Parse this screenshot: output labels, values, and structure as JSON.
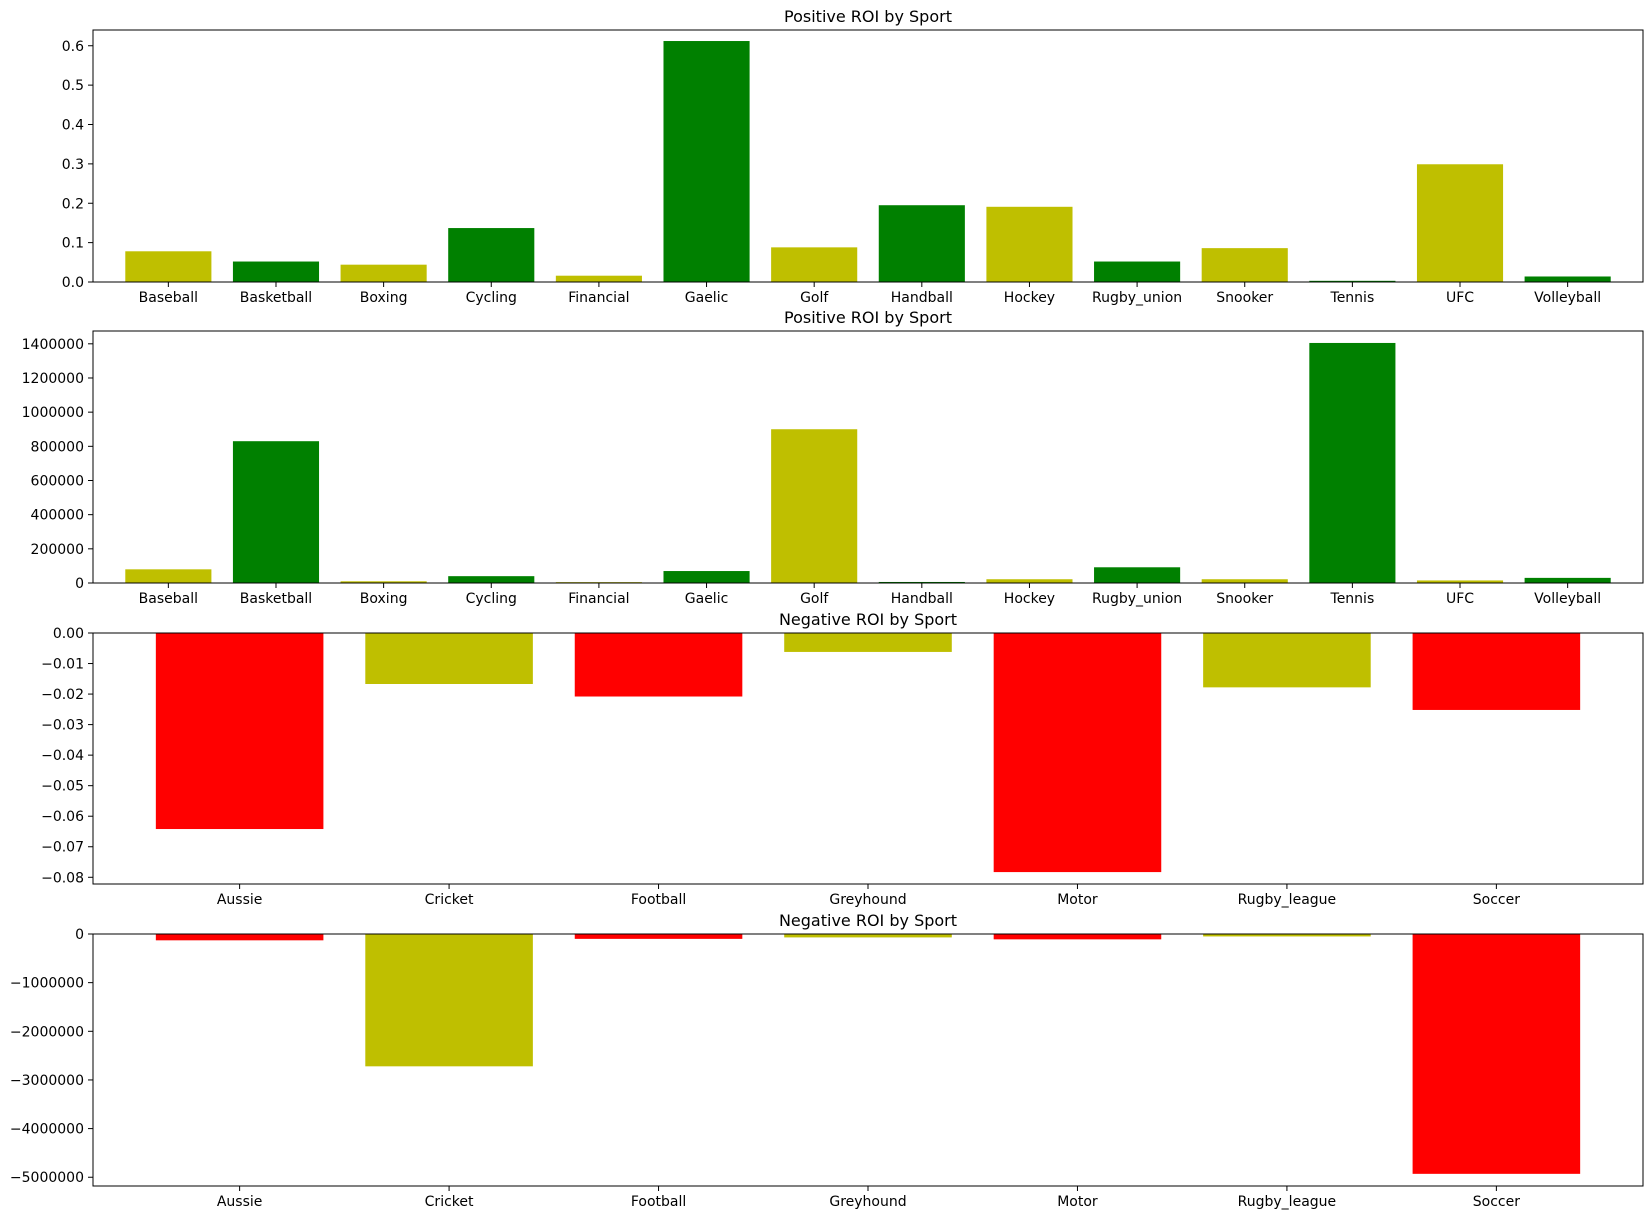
{
  "colors": {
    "green": "#008000",
    "yellow": "#bfbf00",
    "red": "#ff0000",
    "axis": "#000000",
    "background": "#ffffff"
  },
  "chart_data": [
    {
      "type": "bar",
      "title": "Positive ROI by Sport",
      "xlabel": "",
      "ylabel": "",
      "categories": [
        "Baseball",
        "Basketball",
        "Boxing",
        "Cycling",
        "Financial",
        "Gaelic",
        "Golf",
        "Handball",
        "Hockey",
        "Rugby_union",
        "Snooker",
        "Tennis",
        "UFC",
        "Volleyball"
      ],
      "values": [
        0.078,
        0.052,
        0.044,
        0.137,
        0.016,
        0.612,
        0.088,
        0.195,
        0.191,
        0.052,
        0.086,
        0.003,
        0.299,
        0.014
      ],
      "bar_colors": [
        "yellow",
        "green",
        "yellow",
        "green",
        "yellow",
        "green",
        "yellow",
        "green",
        "yellow",
        "green",
        "yellow",
        "green",
        "yellow",
        "green"
      ],
      "ylim": [
        0,
        0.64
      ],
      "yticks": [
        0.0,
        0.1,
        0.2,
        0.3,
        0.4,
        0.5,
        0.6
      ],
      "ytick_labels": [
        "0.0",
        "0.1",
        "0.2",
        "0.3",
        "0.4",
        "0.5",
        "0.6"
      ],
      "grid": false
    },
    {
      "type": "bar",
      "title": "Positive ROI by Sport",
      "xlabel": "",
      "ylabel": "",
      "categories": [
        "Baseball",
        "Basketball",
        "Boxing",
        "Cycling",
        "Financial",
        "Gaelic",
        "Golf",
        "Handball",
        "Hockey",
        "Rugby_union",
        "Snooker",
        "Tennis",
        "UFC",
        "Volleyball"
      ],
      "values": [
        80000,
        830000,
        10000,
        40000,
        5000,
        70000,
        900000,
        6000,
        22000,
        92000,
        22000,
        1405000,
        15000,
        30000
      ],
      "bar_colors": [
        "yellow",
        "green",
        "yellow",
        "green",
        "yellow",
        "green",
        "yellow",
        "green",
        "yellow",
        "green",
        "yellow",
        "green",
        "yellow",
        "green"
      ],
      "ylim": [
        0,
        1475000
      ],
      "yticks": [
        0,
        200000,
        400000,
        600000,
        800000,
        1000000,
        1200000,
        1400000
      ],
      "ytick_labels": [
        "0",
        "200000",
        "400000",
        "600000",
        "800000",
        "1000000",
        "1200000",
        "1400000"
      ],
      "grid": false
    },
    {
      "type": "bar",
      "title": "Negative ROI by Sport",
      "xlabel": "",
      "ylabel": "",
      "categories": [
        "Aussie",
        "Cricket",
        "Football",
        "Greyhound",
        "Motor",
        "Rugby_league",
        "Soccer"
      ],
      "values": [
        -0.0642,
        -0.0167,
        -0.0208,
        -0.0062,
        -0.0783,
        -0.0178,
        -0.0252
      ],
      "bar_colors": [
        "red",
        "yellow",
        "red",
        "yellow",
        "red",
        "yellow",
        "red"
      ],
      "ylim": [
        -0.0822,
        0.0
      ],
      "yticks": [
        0.0,
        -0.01,
        -0.02,
        -0.03,
        -0.04,
        -0.05,
        -0.06,
        -0.07,
        -0.08
      ],
      "ytick_labels": [
        "0.00",
        "−0.01",
        "−0.02",
        "−0.03",
        "−0.04",
        "−0.05",
        "−0.06",
        "−0.07",
        "−0.08"
      ],
      "grid": false
    },
    {
      "type": "bar",
      "title": "Negative ROI by Sport",
      "xlabel": "",
      "ylabel": "",
      "categories": [
        "Aussie",
        "Cricket",
        "Football",
        "Greyhound",
        "Motor",
        "Rugby_league",
        "Soccer"
      ],
      "values": [
        -130000,
        -2720000,
        -100000,
        -70000,
        -110000,
        -50000,
        -4930000
      ],
      "bar_colors": [
        "red",
        "yellow",
        "red",
        "yellow",
        "red",
        "yellow",
        "red"
      ],
      "ylim": [
        -5180000,
        0
      ],
      "yticks": [
        0,
        -1000000,
        -2000000,
        -3000000,
        -4000000,
        -5000000
      ],
      "ytick_labels": [
        "0",
        "−1000000",
        "−2000000",
        "−3000000",
        "−4000000",
        "−5000000"
      ],
      "grid": false
    }
  ]
}
